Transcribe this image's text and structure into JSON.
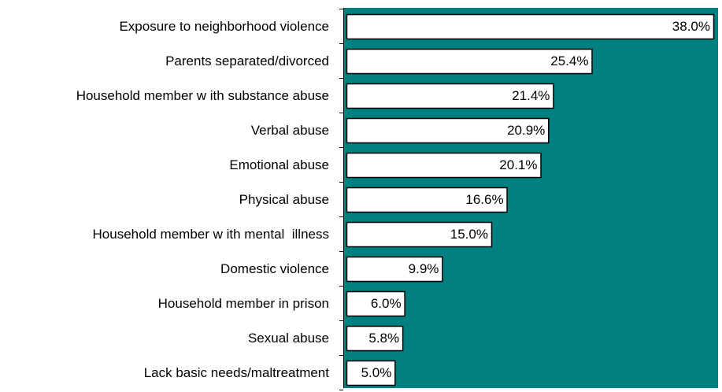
{
  "chart_data": {
    "type": "bar",
    "orientation": "horizontal",
    "title": "",
    "xlabel": "",
    "ylabel": "",
    "categories": [
      "Exposure to neighborhood violence",
      "Parents separated/divorced",
      "Household member w ith substance abuse",
      "Verbal abuse",
      "Emotional abuse",
      "Physical abuse",
      "Household member w ith mental  illness",
      "Domestic violence",
      "Household member in prison",
      "Sexual abuse",
      "Lack basic needs/maltreatment"
    ],
    "values": [
      38.0,
      25.4,
      21.4,
      20.9,
      20.1,
      16.6,
      15.0,
      9.9,
      6.0,
      5.8,
      5.0
    ],
    "value_labels": [
      "38.0%",
      "25.4%",
      "21.4%",
      "20.9%",
      "20.1%",
      "16.6%",
      "15.0%",
      "9.9%",
      "6.0%",
      "5.8%",
      "5.0%"
    ],
    "xlim": [
      0,
      40
    ],
    "grid": false,
    "legend": "none",
    "colors": {
      "plot_background": "#008080",
      "bar_fill": "#ffffff",
      "bar_stroke": "#000000",
      "axis": "#000000"
    }
  }
}
